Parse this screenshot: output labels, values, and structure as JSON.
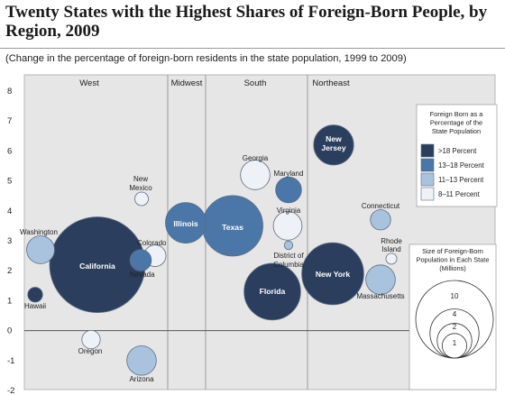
{
  "title": "Twenty States with the Highest Shares of Foreign-Born People, by Region, 2009",
  "subtitle": "(Change in the percentage of foreign-born residents in the state population, 1999 to 2009)",
  "colors": {
    "panel_bg": "#e6e6e6",
    "legend_bg": "#ffffff",
    "divider": "#9a9a9a",
    "bubble_stroke": "#5a6c82",
    "very_dark": "#2b3e5e",
    "dark": "#4a76a8",
    "medium": "#a9c3de",
    "light": "#eef2f7"
  },
  "chart_data": {
    "type": "bubble",
    "ylim": [
      -2,
      8
    ],
    "yticks": [
      8,
      7,
      6,
      5,
      4,
      3,
      2,
      1,
      0,
      -1,
      -2
    ],
    "regions": [
      "West",
      "Midwest",
      "South",
      "Northeast"
    ],
    "color_legend": {
      "title": [
        "Foreign Born as a",
        "Percentage of the",
        "State Population"
      ],
      "items": [
        {
          "label": ">18 Percent",
          "color": "very_dark"
        },
        {
          "label": "13–18 Percent",
          "color": "dark"
        },
        {
          "label": "11–13 Percent",
          "color": "medium"
        },
        {
          "label": "8–11 Percent",
          "color": "light"
        }
      ]
    },
    "size_legend": {
      "title": [
        "Size of Foreign-Born",
        "Population in Each State",
        "(Millions)"
      ],
      "sizes": [
        10,
        4,
        2,
        1
      ]
    },
    "points": [
      {
        "label": "Washington",
        "region": "West",
        "y": 2.7,
        "pop": 0.85,
        "color": "medium"
      },
      {
        "label": "Hawaii",
        "region": "West",
        "y": 1.2,
        "pop": 0.24,
        "color": "very_dark"
      },
      {
        "label": "California",
        "region": "West",
        "y": 2.2,
        "pop": 10.0,
        "color": "very_dark"
      },
      {
        "label": "Oregon",
        "region": "West",
        "y": -0.3,
        "pop": 0.37,
        "color": "light"
      },
      {
        "label": "Nevada",
        "region": "West",
        "y": 2.35,
        "pop": 0.5,
        "color": "dark"
      },
      {
        "label": "New Mexico",
        "region": "West",
        "y": 4.4,
        "pop": 0.2,
        "color": "light"
      },
      {
        "label": "Colorado",
        "region": "West",
        "y": 2.5,
        "pop": 0.51,
        "color": "light"
      },
      {
        "label": "Arizona",
        "region": "West",
        "y": -1.0,
        "pop": 0.95,
        "color": "medium"
      },
      {
        "label": "Illinois",
        "region": "Midwest",
        "y": 3.6,
        "pop": 1.8,
        "color": "dark"
      },
      {
        "label": "Georgia",
        "region": "South",
        "y": 5.2,
        "pop": 0.95,
        "color": "light"
      },
      {
        "label": "Texas",
        "region": "South",
        "y": 3.5,
        "pop": 4.0,
        "color": "dark"
      },
      {
        "label": "Maryland",
        "region": "South",
        "y": 4.7,
        "pop": 0.73,
        "color": "dark"
      },
      {
        "label": "Virginia",
        "region": "South",
        "y": 3.5,
        "pop": 0.9,
        "color": "light"
      },
      {
        "label": "District of Columbia",
        "region": "South",
        "y": 2.85,
        "pop": 0.08,
        "color": "medium"
      },
      {
        "label": "Florida",
        "region": "South",
        "y": 1.3,
        "pop": 3.5,
        "color": "very_dark"
      },
      {
        "label": "New Jersey",
        "region": "Northeast",
        "y": 6.2,
        "pop": 1.75,
        "color": "very_dark"
      },
      {
        "label": "New York",
        "region": "Northeast",
        "y": 1.9,
        "pop": 4.2,
        "color": "very_dark"
      },
      {
        "label": "Connecticut",
        "region": "Northeast",
        "y": 3.7,
        "pop": 0.45,
        "color": "medium"
      },
      {
        "label": "Rhode Island",
        "region": "Northeast",
        "y": 2.4,
        "pop": 0.13,
        "color": "light"
      },
      {
        "label": "Massachusetts",
        "region": "Northeast",
        "y": 1.7,
        "pop": 0.95,
        "color": "medium"
      }
    ]
  }
}
